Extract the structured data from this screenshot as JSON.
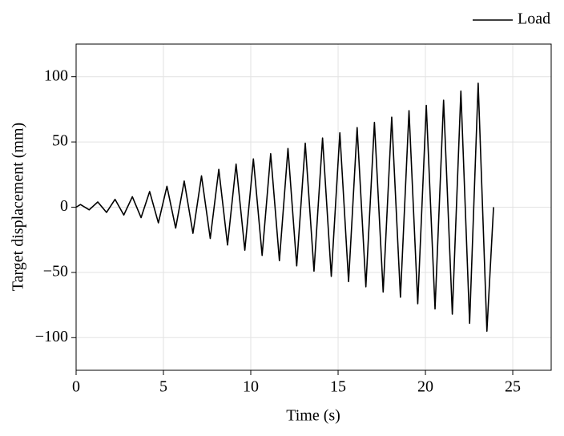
{
  "chart_data": {
    "type": "line",
    "xlabel": "Time (s)",
    "ylabel": "Target displacement (mm)",
    "xlim": [
      0,
      27.2
    ],
    "ylim": [
      -125,
      125
    ],
    "xticks": [
      0,
      5,
      10,
      15,
      20,
      25
    ],
    "yticks": [
      {
        "value": -100,
        "label": "−100"
      },
      {
        "value": -50,
        "label": "−50"
      },
      0,
      50,
      100
    ],
    "grid": true,
    "legend": "top-right",
    "series": [
      {
        "name": "Load",
        "color": "#000000",
        "x": [
          0,
          0.25,
          0.75,
          1.24,
          1.74,
          2.23,
          2.73,
          3.22,
          3.72,
          4.21,
          4.71,
          5.2,
          5.7,
          6.19,
          6.69,
          7.18,
          7.68,
          8.17,
          8.67,
          9.16,
          9.66,
          10.15,
          10.65,
          11.14,
          11.64,
          12.13,
          12.63,
          13.12,
          13.62,
          14.11,
          14.61,
          15.1,
          15.6,
          16.09,
          16.59,
          17.08,
          17.58,
          18.07,
          18.57,
          19.06,
          19.56,
          20.05,
          20.55,
          21.04,
          21.54,
          22.03,
          22.53,
          23.02,
          23.52,
          23.9
        ],
        "values": [
          0,
          2,
          -2,
          4,
          -4,
          6,
          -6,
          8,
          -8,
          12,
          -12,
          16,
          -16,
          20,
          -20,
          24,
          -24,
          29,
          -29,
          33,
          -33,
          37,
          -37,
          41,
          -41,
          45,
          -45,
          49,
          -49,
          53,
          -53,
          57,
          -57,
          61,
          -61,
          65,
          -65,
          69,
          -69,
          74,
          -74,
          78,
          -78,
          82,
          -82,
          89,
          -89,
          95,
          -95,
          0
        ]
      }
    ]
  }
}
